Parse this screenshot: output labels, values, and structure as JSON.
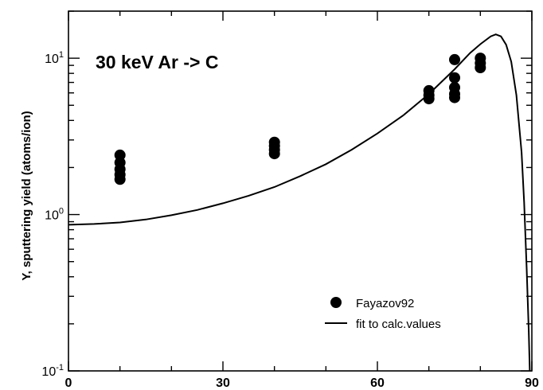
{
  "chart_data": {
    "type": "scatter",
    "annotation": "30 keV Ar -> C",
    "xlabel": "",
    "ylabel": "Y, sputtering yield (atoms/ion)",
    "xlim": [
      0,
      90
    ],
    "ylim": [
      0.1,
      20
    ],
    "yscale": "log",
    "grid": false,
    "legend_position": "bottom-right",
    "x_ticks": [
      {
        "value": 0,
        "label": "0"
      },
      {
        "value": 30,
        "label": "30"
      },
      {
        "value": 60,
        "label": "60"
      },
      {
        "value": 90,
        "label": "90"
      }
    ],
    "y_ticks": [
      {
        "value": 0.1,
        "base": "10",
        "exp": "-1"
      },
      {
        "value": 1,
        "base": "10",
        "exp": "0"
      },
      {
        "value": 10,
        "base": "10",
        "exp": "1"
      }
    ],
    "series": [
      {
        "name": "Fayazov92",
        "kind": "scatter",
        "color": "#000000",
        "points": [
          {
            "x": 10,
            "y": 2.4
          },
          {
            "x": 10,
            "y": 2.15
          },
          {
            "x": 10,
            "y": 1.95
          },
          {
            "x": 10,
            "y": 1.8
          },
          {
            "x": 10,
            "y": 1.68
          },
          {
            "x": 40,
            "y": 2.9
          },
          {
            "x": 40,
            "y": 2.75
          },
          {
            "x": 40,
            "y": 2.6
          },
          {
            "x": 40,
            "y": 2.45
          },
          {
            "x": 70,
            "y": 6.2
          },
          {
            "x": 70,
            "y": 5.8
          },
          {
            "x": 70,
            "y": 5.5
          },
          {
            "x": 75,
            "y": 9.8
          },
          {
            "x": 75,
            "y": 7.5
          },
          {
            "x": 75,
            "y": 6.5
          },
          {
            "x": 75,
            "y": 5.9
          },
          {
            "x": 75,
            "y": 5.6
          },
          {
            "x": 80,
            "y": 10.0
          },
          {
            "x": 80,
            "y": 9.3
          },
          {
            "x": 80,
            "y": 8.7
          }
        ]
      },
      {
        "name": "fit to calc.values",
        "kind": "line",
        "color": "#000000",
        "points": [
          {
            "x": 0,
            "y": 0.86
          },
          {
            "x": 5,
            "y": 0.87
          },
          {
            "x": 10,
            "y": 0.89
          },
          {
            "x": 15,
            "y": 0.93
          },
          {
            "x": 20,
            "y": 0.99
          },
          {
            "x": 25,
            "y": 1.07
          },
          {
            "x": 30,
            "y": 1.18
          },
          {
            "x": 35,
            "y": 1.32
          },
          {
            "x": 40,
            "y": 1.5
          },
          {
            "x": 45,
            "y": 1.76
          },
          {
            "x": 50,
            "y": 2.1
          },
          {
            "x": 55,
            "y": 2.6
          },
          {
            "x": 60,
            "y": 3.3
          },
          {
            "x": 65,
            "y": 4.3
          },
          {
            "x": 70,
            "y": 5.9
          },
          {
            "x": 75,
            "y": 8.5
          },
          {
            "x": 78,
            "y": 10.8
          },
          {
            "x": 80,
            "y": 12.3
          },
          {
            "x": 82,
            "y": 13.8
          },
          {
            "x": 83,
            "y": 14.2
          },
          {
            "x": 84,
            "y": 13.8
          },
          {
            "x": 85,
            "y": 12.2
          },
          {
            "x": 86,
            "y": 9.5
          },
          {
            "x": 87,
            "y": 5.8
          },
          {
            "x": 88,
            "y": 2.5
          },
          {
            "x": 88.5,
            "y": 1.2
          },
          {
            "x": 89,
            "y": 0.45
          },
          {
            "x": 89.4,
            "y": 0.18
          },
          {
            "x": 89.6,
            "y": 0.1
          }
        ]
      }
    ]
  }
}
